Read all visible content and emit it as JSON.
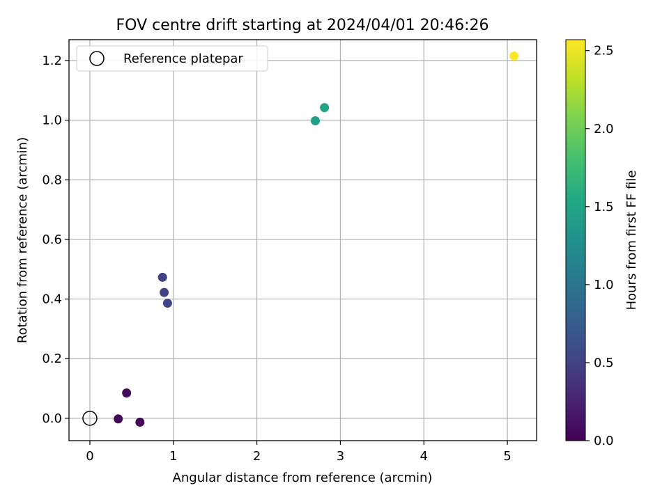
{
  "chart_data": {
    "type": "scatter",
    "title": "FOV centre drift starting at 2024/04/01 20:46:26",
    "xlabel": "Angular distance from reference (arcmin)",
    "ylabel": "Rotation from reference (arcmin)",
    "xlim": [
      -0.25,
      5.35
    ],
    "ylim": [
      -0.075,
      1.27
    ],
    "xticks": [
      0,
      1,
      2,
      3,
      4,
      5
    ],
    "yticks": [
      0.0,
      0.2,
      0.4,
      0.6,
      0.8,
      1.0,
      1.2
    ],
    "grid": true,
    "legend": {
      "placement": "upper-left",
      "entries": [
        "Reference platepar"
      ]
    },
    "reference_point": {
      "name": "Reference platepar",
      "x": 0,
      "y": 0
    },
    "colorbar": {
      "label": "Hours from first FF file",
      "range": [
        0,
        2.57
      ],
      "ticks": [
        0.0,
        0.5,
        1.0,
        1.5,
        2.0,
        2.5
      ],
      "colormap": "viridis"
    },
    "points": [
      {
        "x": 0.34,
        "y": -0.002,
        "hours": 0.02
      },
      {
        "x": 0.44,
        "y": 0.085,
        "hours": 0.06
      },
      {
        "x": 0.6,
        "y": -0.013,
        "hours": 0.04
      },
      {
        "x": 0.87,
        "y": 0.473,
        "hours": 0.5
      },
      {
        "x": 0.89,
        "y": 0.422,
        "hours": 0.5
      },
      {
        "x": 0.93,
        "y": 0.386,
        "hours": 0.52
      },
      {
        "x": 2.7,
        "y": 0.998,
        "hours": 1.45
      },
      {
        "x": 2.81,
        "y": 1.042,
        "hours": 1.47
      },
      {
        "x": 5.08,
        "y": 1.215,
        "hours": 2.57
      }
    ]
  }
}
